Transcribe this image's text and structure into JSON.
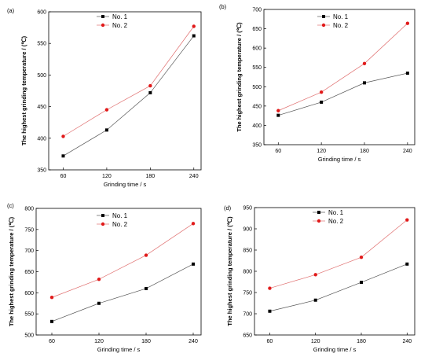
{
  "colors": {
    "series1": "#000000",
    "series2": "#e11a1a",
    "line1": "#555555",
    "line2": "#e07070"
  },
  "chart_data": [
    {
      "type": "line",
      "panel_label": "(a)",
      "x": [
        60,
        120,
        180,
        240
      ],
      "xlabel": "Grinding time / s",
      "ylabel": "The highest grinding temperature / (℃)",
      "xticks": [
        "60",
        "120",
        "180",
        "240"
      ],
      "xlim": [
        40,
        250
      ],
      "ylim": [
        350,
        600
      ],
      "yticks": [
        "350",
        "400",
        "450",
        "500",
        "550",
        "600"
      ],
      "legend_position": "top-center",
      "series": [
        {
          "name": "No. 1",
          "values": [
            372,
            413,
            472,
            562
          ]
        },
        {
          "name": "No. 2",
          "values": [
            403,
            445,
            483,
            577
          ]
        }
      ]
    },
    {
      "type": "line",
      "panel_label": "(b)",
      "x": [
        60,
        120,
        180,
        240
      ],
      "xlabel": "Grinding time / s",
      "ylabel": "The highest grinding temperature / (℃)",
      "xticks": [
        "60",
        "120",
        "180",
        "240"
      ],
      "xlim": [
        40,
        250
      ],
      "ylim": [
        350,
        700
      ],
      "yticks": [
        "350",
        "400",
        "450",
        "500",
        "550",
        "600",
        "650",
        "700"
      ],
      "legend_position": "top-center",
      "series": [
        {
          "name": "No. 1",
          "values": [
            426,
            460,
            510,
            535
          ]
        },
        {
          "name": "No. 2",
          "values": [
            438,
            486,
            560,
            664
          ]
        }
      ]
    },
    {
      "type": "line",
      "panel_label": "(c)",
      "x": [
        60,
        120,
        180,
        240
      ],
      "xlabel": "Grinding time / s",
      "ylabel": "The highest grinding temperature / (℃)",
      "xticks": [
        "60",
        "120",
        "180",
        "240"
      ],
      "xlim": [
        40,
        250
      ],
      "ylim": [
        500,
        800
      ],
      "yticks": [
        "500",
        "550",
        "600",
        "650",
        "700",
        "750",
        "800"
      ],
      "legend_position": "top-center",
      "series": [
        {
          "name": "No. 1",
          "values": [
            532,
            575,
            610,
            668
          ]
        },
        {
          "name": "No. 2",
          "values": [
            589,
            632,
            689,
            764
          ]
        }
      ]
    },
    {
      "type": "line",
      "panel_label": "(d)",
      "x": [
        60,
        120,
        180,
        240
      ],
      "xlabel": "Grinding time / s",
      "ylabel": "The highest grinding temperature / (℃)",
      "xticks": [
        "60",
        "120",
        "180",
        "240"
      ],
      "xlim": [
        40,
        250
      ],
      "ylim": [
        650,
        950
      ],
      "yticks": [
        "650",
        "700",
        "750",
        "800",
        "850",
        "900",
        "950"
      ],
      "legend_position": "top-center",
      "series": [
        {
          "name": "No. 1",
          "values": [
            706,
            732,
            774,
            817
          ]
        },
        {
          "name": "No. 2",
          "values": [
            760,
            792,
            833,
            921
          ]
        }
      ]
    }
  ]
}
